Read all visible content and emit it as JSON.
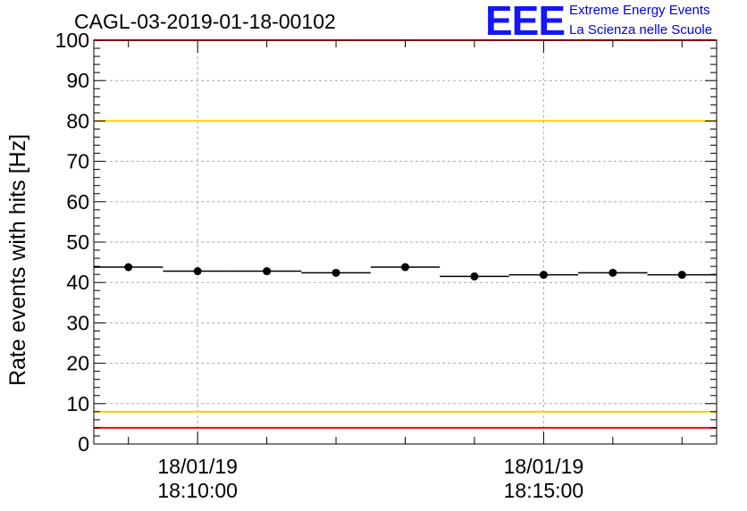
{
  "header": {
    "run_title": "CAGL-03-2019-01-18-00102",
    "logo_text": "EEE",
    "logo_line1": "Extreme Energy Events",
    "logo_line2": "La Scienza nelle Scuole"
  },
  "colors": {
    "red_threshold": "#ff0000",
    "yellow_threshold": "#ffcc00",
    "data": "#000000",
    "grid": "#aaaaaa"
  },
  "chart_data": {
    "type": "scatter",
    "title": "CAGL-03-2019-01-18-00102",
    "ylabel": "Rate events with hits [Hz]",
    "xlabel": "",
    "ylim": [
      0,
      100
    ],
    "y_ticks": [
      "0",
      "10",
      "20",
      "30",
      "40",
      "50",
      "60",
      "70",
      "80",
      "90",
      "100"
    ],
    "x_range": [
      "2019-01-18 18:08:30",
      "2019-01-18 18:17:30"
    ],
    "x_tick_labels": [
      {
        "date": "18/01/19",
        "time": "18:10:00"
      },
      {
        "date": "18/01/19",
        "time": "18:15:00"
      }
    ],
    "grid": true,
    "thresholds": [
      {
        "value": 100,
        "color": "red"
      },
      {
        "value": 80,
        "color": "yellow"
      },
      {
        "value": 8,
        "color": "yellow"
      },
      {
        "value": 4,
        "color": "red"
      }
    ],
    "points": [
      {
        "x": "2019-01-18 18:09:00",
        "y": 43.8
      },
      {
        "x": "2019-01-18 18:10:00",
        "y": 42.8
      },
      {
        "x": "2019-01-18 18:11:00",
        "y": 42.8
      },
      {
        "x": "2019-01-18 18:12:00",
        "y": 42.4
      },
      {
        "x": "2019-01-18 18:13:00",
        "y": 43.8
      },
      {
        "x": "2019-01-18 18:14:00",
        "y": 41.5
      },
      {
        "x": "2019-01-18 18:15:00",
        "y": 41.9
      },
      {
        "x": "2019-01-18 18:16:00",
        "y": 42.4
      },
      {
        "x": "2019-01-18 18:17:00",
        "y": 41.9
      }
    ]
  }
}
